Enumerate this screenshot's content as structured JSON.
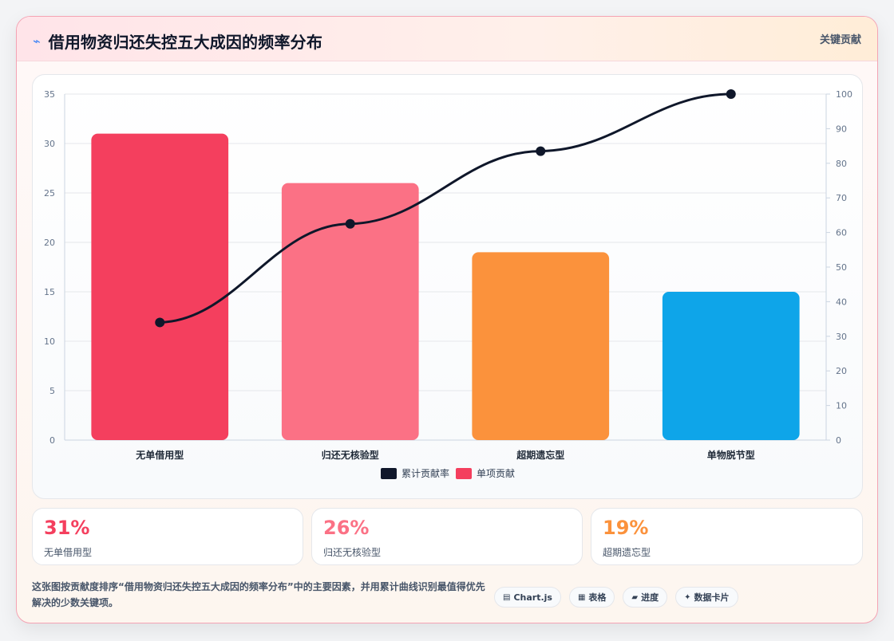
{
  "card": {
    "title": "借用物资归还失控五大成因的频率分布",
    "header_link": "关键贡献"
  },
  "chart_data": {
    "type": "bar",
    "categories": [
      "无单借用型",
      "归还无核验型",
      "超期遗忘型",
      "单物脱节型"
    ],
    "series": [
      {
        "name": "单项贡献",
        "type": "bar",
        "values": [
          31,
          26,
          19,
          15
        ],
        "colors": [
          "#f43f5e",
          "#fb7185",
          "#fb923c",
          "#0ea5e9"
        ]
      },
      {
        "name": "累计贡献率",
        "type": "line",
        "values": [
          34,
          62.5,
          83.5,
          100
        ],
        "color": "#0f172a"
      }
    ],
    "left_axis": {
      "min": 0,
      "max": 35,
      "ticks": [
        0,
        5,
        10,
        15,
        20,
        25,
        30,
        35
      ]
    },
    "right_axis": {
      "min": 0,
      "max": 100,
      "ticks": [
        0,
        10,
        20,
        30,
        40,
        50,
        60,
        70,
        80,
        90,
        100
      ]
    },
    "legend": [
      {
        "label": "累计贡献率",
        "color": "#0f172a"
      },
      {
        "label": "单项贡献",
        "color": "#f43f5e"
      }
    ],
    "legend_position": "bottom",
    "grid": true
  },
  "metrics": [
    {
      "value": "31%",
      "label": "无单借用型",
      "color": "#f43f5e"
    },
    {
      "value": "26%",
      "label": "归还无核验型",
      "color": "#fb7185"
    },
    {
      "value": "19%",
      "label": "超期遗忘型",
      "color": "#fb923c"
    }
  ],
  "footer": {
    "text": "这张图按贡献度排序“借用物资归还失控五大成因的频率分布”中的主要因素，并用累计曲线识别最值得优先解决的少数关键项。"
  },
  "tags": [
    {
      "icon": "▤",
      "label": "Chart.js"
    },
    {
      "icon": "▦",
      "label": "表格"
    },
    {
      "icon": "▰",
      "label": "进度"
    },
    {
      "icon": "✦",
      "label": "数据卡片"
    }
  ]
}
